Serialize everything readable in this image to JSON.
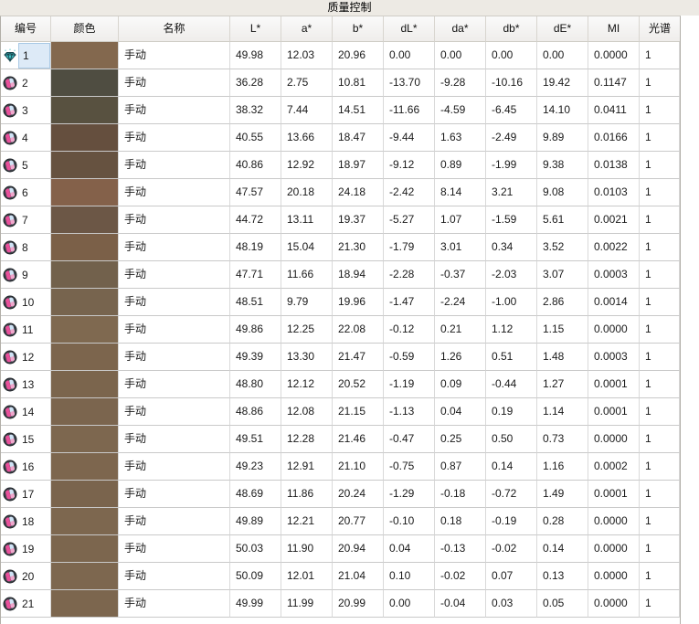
{
  "title": "质量控制",
  "columns": [
    "编号",
    "颜色",
    "名称",
    "L*",
    "a*",
    "b*",
    "dL*",
    "da*",
    "db*",
    "dE*",
    "MI",
    "光谱"
  ],
  "colors": {
    "title_bg": "#edeae4",
    "header_bg": "#f3f1ef",
    "grid_line": "#c9c9c9",
    "selected_cell_bg": "#ddeaf7",
    "selected_cell_border": "#a9c9e5",
    "standard_gem": "#3fc6c8",
    "sample_pink": "#e8509a",
    "sample_blue": "#cfe3f5"
  },
  "rows": [
    {
      "num": "1",
      "icon": "standard",
      "selected": true,
      "color": "#83684E",
      "name": "手动",
      "L": "49.98",
      "a": "12.03",
      "b": "20.96",
      "dL": "0.00",
      "da": "0.00",
      "db": "0.00",
      "dE": "0.00",
      "MI": "0.0000",
      "spectrum": "1"
    },
    {
      "num": "2",
      "icon": "sample",
      "selected": false,
      "color": "#4F4D41",
      "name": "手动",
      "L": "36.28",
      "a": "2.75",
      "b": "10.81",
      "dL": "-13.70",
      "da": "-9.28",
      "db": "-10.16",
      "dE": "19.42",
      "MI": "0.1147",
      "spectrum": "1"
    },
    {
      "num": "3",
      "icon": "sample",
      "selected": false,
      "color": "#585140",
      "name": "手动",
      "L": "38.32",
      "a": "7.44",
      "b": "14.51",
      "dL": "-11.66",
      "da": "-4.59",
      "db": "-6.45",
      "dE": "14.10",
      "MI": "0.0411",
      "spectrum": "1"
    },
    {
      "num": "4",
      "icon": "sample",
      "selected": false,
      "color": "#654F3E",
      "name": "手动",
      "L": "40.55",
      "a": "13.66",
      "b": "18.47",
      "dL": "-9.44",
      "da": "1.63",
      "db": "-2.49",
      "dE": "9.89",
      "MI": "0.0166",
      "spectrum": "1"
    },
    {
      "num": "5",
      "icon": "sample",
      "selected": false,
      "color": "#665240",
      "name": "手动",
      "L": "40.86",
      "a": "12.92",
      "b": "18.97",
      "dL": "-9.12",
      "da": "0.89",
      "db": "-1.99",
      "dE": "9.38",
      "MI": "0.0138",
      "spectrum": "1"
    },
    {
      "num": "6",
      "icon": "sample",
      "selected": false,
      "color": "#84614A",
      "name": "手动",
      "L": "47.57",
      "a": "20.18",
      "b": "24.18",
      "dL": "-2.42",
      "da": "8.14",
      "db": "3.21",
      "dE": "9.08",
      "MI": "0.0103",
      "spectrum": "1"
    },
    {
      "num": "7",
      "icon": "sample",
      "selected": false,
      "color": "#6C5746",
      "name": "手动",
      "L": "44.72",
      "a": "13.11",
      "b": "19.37",
      "dL": "-5.27",
      "da": "1.07",
      "db": "-1.59",
      "dE": "5.61",
      "MI": "0.0021",
      "spectrum": "1"
    },
    {
      "num": "8",
      "icon": "sample",
      "selected": false,
      "color": "#7B6048",
      "name": "手动",
      "L": "48.19",
      "a": "15.04",
      "b": "21.30",
      "dL": "-1.79",
      "da": "3.01",
      "db": "0.34",
      "dE": "3.52",
      "MI": "0.0022",
      "spectrum": "1"
    },
    {
      "num": "9",
      "icon": "sample",
      "selected": false,
      "color": "#72614C",
      "name": "手动",
      "L": "47.71",
      "a": "11.66",
      "b": "18.94",
      "dL": "-2.28",
      "da": "-0.37",
      "db": "-2.03",
      "dE": "3.07",
      "MI": "0.0003",
      "spectrum": "1"
    },
    {
      "num": "10",
      "icon": "sample",
      "selected": false,
      "color": "#77644E",
      "name": "手动",
      "L": "48.51",
      "a": "9.79",
      "b": "19.96",
      "dL": "-1.47",
      "da": "-2.24",
      "db": "-1.00",
      "dE": "2.86",
      "MI": "0.0014",
      "spectrum": "1"
    },
    {
      "num": "11",
      "icon": "sample",
      "selected": false,
      "color": "#7F6950",
      "name": "手动",
      "L": "49.86",
      "a": "12.25",
      "b": "22.08",
      "dL": "-0.12",
      "da": "0.21",
      "db": "1.12",
      "dE": "1.15",
      "MI": "0.0000",
      "spectrum": "1"
    },
    {
      "num": "12",
      "icon": "sample",
      "selected": false,
      "color": "#7C654D",
      "name": "手动",
      "L": "49.39",
      "a": "13.30",
      "b": "21.47",
      "dL": "-0.59",
      "da": "1.26",
      "db": "0.51",
      "dE": "1.48",
      "MI": "0.0003",
      "spectrum": "1"
    },
    {
      "num": "13",
      "icon": "sample",
      "selected": false,
      "color": "#7B654D",
      "name": "手动",
      "L": "48.80",
      "a": "12.12",
      "b": "20.52",
      "dL": "-1.19",
      "da": "0.09",
      "db": "-0.44",
      "dE": "1.27",
      "MI": "0.0001",
      "spectrum": "1"
    },
    {
      "num": "14",
      "icon": "sample",
      "selected": false,
      "color": "#7B654E",
      "name": "手动",
      "L": "48.86",
      "a": "12.08",
      "b": "21.15",
      "dL": "-1.13",
      "da": "0.04",
      "db": "0.19",
      "dE": "1.14",
      "MI": "0.0001",
      "spectrum": "1"
    },
    {
      "num": "15",
      "icon": "sample",
      "selected": false,
      "color": "#7D674F",
      "name": "手动",
      "L": "49.51",
      "a": "12.28",
      "b": "21.46",
      "dL": "-0.47",
      "da": "0.25",
      "db": "0.50",
      "dE": "0.73",
      "MI": "0.0000",
      "spectrum": "1"
    },
    {
      "num": "16",
      "icon": "sample",
      "selected": false,
      "color": "#7D664E",
      "name": "手动",
      "L": "49.23",
      "a": "12.91",
      "b": "21.10",
      "dL": "-0.75",
      "da": "0.87",
      "db": "0.14",
      "dE": "1.16",
      "MI": "0.0002",
      "spectrum": "1"
    },
    {
      "num": "17",
      "icon": "sample",
      "selected": false,
      "color": "#7A644D",
      "name": "手动",
      "L": "48.69",
      "a": "11.86",
      "b": "20.24",
      "dL": "-1.29",
      "da": "-0.18",
      "db": "-0.72",
      "dE": "1.49",
      "MI": "0.0001",
      "spectrum": "1"
    },
    {
      "num": "18",
      "icon": "sample",
      "selected": false,
      "color": "#7D674F",
      "name": "手动",
      "L": "49.89",
      "a": "12.21",
      "b": "20.77",
      "dL": "-0.10",
      "da": "0.18",
      "db": "-0.19",
      "dE": "0.28",
      "MI": "0.0000",
      "spectrum": "1"
    },
    {
      "num": "19",
      "icon": "sample",
      "selected": false,
      "color": "#7C664E",
      "name": "手动",
      "L": "50.03",
      "a": "11.90",
      "b": "20.94",
      "dL": "0.04",
      "da": "-0.13",
      "db": "-0.02",
      "dE": "0.14",
      "MI": "0.0000",
      "spectrum": "1"
    },
    {
      "num": "20",
      "icon": "sample",
      "selected": false,
      "color": "#7D674F",
      "name": "手动",
      "L": "50.09",
      "a": "12.01",
      "b": "21.04",
      "dL": "0.10",
      "da": "-0.02",
      "db": "0.07",
      "dE": "0.13",
      "MI": "0.0000",
      "spectrum": "1"
    },
    {
      "num": "21",
      "icon": "sample",
      "selected": false,
      "color": "#7C664E",
      "name": "手动",
      "L": "49.99",
      "a": "11.99",
      "b": "20.99",
      "dL": "0.00",
      "da": "-0.04",
      "db": "0.03",
      "dE": "0.05",
      "MI": "0.0000",
      "spectrum": "1"
    }
  ]
}
